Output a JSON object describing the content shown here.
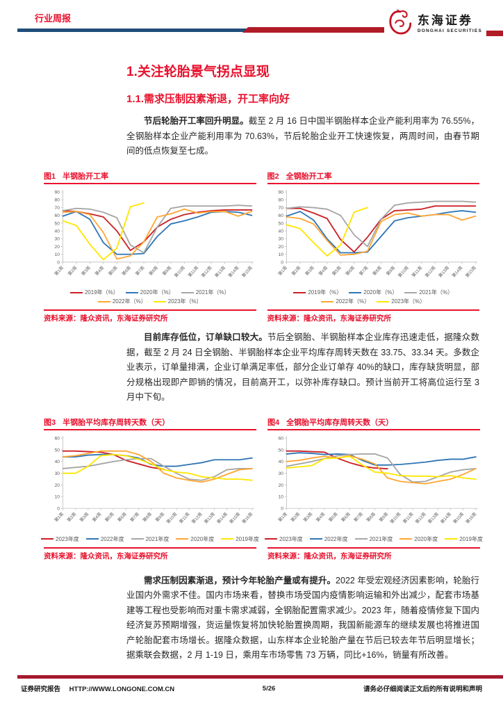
{
  "header": {
    "doc_type": "行业周报",
    "brand_cn": "东海证券",
    "brand_en": "DONGHAI SECURITIES"
  },
  "section": {
    "h1": "1.关注轮胎景气拐点显现",
    "h2": "1.1.需求压制因素渐退，开工率向好"
  },
  "paragraphs": {
    "p1_bold": "节后轮胎开工率回升明显。",
    "p1_rest": "截至 2 月 16 日中国半钢胎样本企业产能利用率为 76.55%，全钢胎样本企业产能利用率为 70.63%，节后轮胎企业开工快速恢复，两周时间，由春节期间的低点恢复至七成。",
    "p2_bold": "目前库存低位，订单缺口较大。",
    "p2_rest": "节后全钢胎、半钢胎样本企业库存迅速走低，据隆众数据，截至 2 月 24 日全钢胎、半钢胎样本企业平均库存周转天数在 33.75、33.34 天。多数企业表示，订单量排满，企业订单满足率低，部分企业订单存 40%的缺口，库存缺货明显，部分规格出现即产即销的情况，目前高开工，以弥补库存缺口。预计当前开工将高位运行至 3 月中下旬。",
    "p3_bold": "需求压制因素渐退，预计今年轮胎产量或有提升。",
    "p3_rest": "2022 年受宏观经济因素影响，轮胎行业国内外需求不佳。国内市场来看，替换市场受国内疫情影响运输和外出减少，配套市场基建等工程也受影响而对重卡需求减弱，全钢胎配置需求减少。2023 年，随着疫情修复下国内经济复苏预期增强，货运量恢复将加快轮胎置换周期，我国新能源车的继续发展也将推进国产轮胎配套市场增长。据隆众数据，山东样本企业轮胎产量在节后已较去年节后明显增长；据乘联会数据，2 月 1-19 日，乘用车市场零售 73 万辆，同比+16%，销量有所改善。"
  },
  "footer": {
    "left1": "证券研究报告",
    "left2": "HTTP://WWW.LONGONE.COM.CN",
    "page": "5/26",
    "right": "请务必仔细阅读正文后的所有说明和声明"
  },
  "colors": {
    "accent_red": "#E8112D",
    "header_blue": "#1F4E79",
    "header_red": "#B01B27",
    "footer_red": "#A6192E"
  },
  "chart_data": [
    {
      "type": "line",
      "fig_label": "图1",
      "title": "半钢胎开工率",
      "source": "资料来源：隆众资讯，东海证券研究所",
      "categories": [
        "第1周",
        "第2周",
        "第3周",
        "第4周",
        "第5周",
        "第6周",
        "第7周",
        "第8周",
        "第9周",
        "第10周",
        "第11周",
        "第12周",
        "第13周",
        "第14周",
        "第15周"
      ],
      "ylim": [
        0,
        90
      ],
      "ytick_step": 10,
      "grid": false,
      "legend_position": "bottom",
      "legend_wrap": 3,
      "series": [
        {
          "name": "2019年（%）",
          "color": "#CB2026",
          "values": [
            66,
            65,
            62,
            58,
            40,
            15,
            26,
            45,
            55,
            61,
            64,
            66,
            67,
            67,
            67
          ]
        },
        {
          "name": "2020年（%）",
          "color": "#2E75B6",
          "values": [
            59,
            65,
            55,
            25,
            10,
            10,
            11,
            33,
            49,
            53,
            58,
            64,
            65,
            64,
            60
          ]
        },
        {
          "name": "2021年（%）",
          "color": "#A6A6A6",
          "values": [
            66,
            69,
            68,
            64,
            57,
            22,
            12,
            45,
            69,
            72,
            72,
            72,
            72,
            73,
            72
          ]
        },
        {
          "name": "2022年（%）",
          "color": "#FFA632",
          "values": [
            64,
            65,
            61,
            38,
            4,
            8,
            26,
            58,
            62,
            68,
            63,
            65,
            65,
            59,
            65
          ]
        },
        {
          "name": "2023年（%）",
          "color": "#FFE600",
          "values": [
            53,
            47,
            23,
            3,
            18,
            71,
            76
          ]
        }
      ]
    },
    {
      "type": "line",
      "fig_label": "图2",
      "title": "全钢胎开工率",
      "source": "资料来源：隆众资讯，东海证券研究所",
      "categories": [
        "第1周",
        "第2周",
        "第3周",
        "第4周",
        "第5周",
        "第6周",
        "第7周",
        "第8周",
        "第9周",
        "第10周",
        "第11周",
        "第12周",
        "第13周",
        "第14周",
        "第15周"
      ],
      "ylim": [
        0,
        90
      ],
      "ytick_step": 10,
      "grid": false,
      "legend_position": "bottom",
      "legend_wrap": 3,
      "series": [
        {
          "name": "2019年（%）",
          "color": "#CB2026",
          "values": [
            69,
            69,
            63,
            56,
            29,
            13,
            32,
            55,
            66,
            67,
            68,
            72,
            72,
            72,
            72
          ]
        },
        {
          "name": "2020年（%）",
          "color": "#2E75B6",
          "values": [
            59,
            65,
            54,
            30,
            12,
            12,
            13,
            33,
            53,
            57,
            59,
            61,
            64,
            66,
            64
          ]
        },
        {
          "name": "2021年（%）",
          "color": "#A6A6A6",
          "values": [
            69,
            71,
            70,
            68,
            60,
            35,
            20,
            55,
            73,
            76,
            77,
            78,
            78,
            78,
            77
          ]
        },
        {
          "name": "2022年（%）",
          "color": "#FFA632",
          "values": [
            58,
            56,
            49,
            28,
            9,
            10,
            14,
            52,
            61,
            63,
            59,
            61,
            61,
            54,
            59
          ]
        },
        {
          "name": "2023年（%）",
          "color": "#FFE600",
          "values": [
            48,
            43,
            25,
            8,
            22,
            64,
            70
          ]
        }
      ]
    },
    {
      "type": "line",
      "fig_label": "图3",
      "title": "半钢胎平均库存周转天数（天）",
      "source": "资料来源：隆众资讯，东海证券研究所",
      "categories": [
        "第1周",
        "第2周",
        "第3周",
        "第4周",
        "第5周",
        "第6周",
        "第7周",
        "第8周",
        "第9周",
        "第10周",
        "第11周",
        "第12周",
        "第13周",
        "第14周",
        "第15周",
        "第16周"
      ],
      "ylim": [
        0,
        60
      ],
      "ytick_step": 10,
      "grid": false,
      "legend_position": "bottom",
      "legend_wrap": 5,
      "series": [
        {
          "name": "2023年度",
          "color": "#CB2026",
          "values": [
            49,
            49,
            48.5,
            48,
            46,
            41,
            38,
            35,
            33.4
          ]
        },
        {
          "name": "2022年度",
          "color": "#2E75B6",
          "values": [
            44,
            44,
            45.5,
            46,
            46,
            45,
            43,
            37.5,
            36,
            36,
            37.5,
            39,
            41.5,
            41.5,
            41.5,
            43
          ]
        },
        {
          "name": "2021年度",
          "color": "#A6A6A6",
          "values": [
            34,
            35,
            36,
            38,
            40,
            41.5,
            42.5,
            42.5,
            36,
            30,
            25,
            24,
            27,
            33,
            34,
            34
          ]
        },
        {
          "name": "2020年度",
          "color": "#FFA632",
          "values": [
            44,
            45,
            47,
            49,
            49,
            49,
            46,
            40,
            30,
            26,
            24,
            22.5,
            25,
            29,
            33,
            34
          ]
        },
        {
          "name": "2019年度",
          "color": "#FFE600",
          "values": [
            30,
            30,
            36,
            45,
            46,
            45,
            42,
            38,
            33,
            31,
            30,
            27,
            26,
            25,
            25,
            24
          ]
        }
      ]
    },
    {
      "type": "line",
      "fig_label": "图4",
      "title": "全钢胎平均库存周转天数（天）",
      "source": "资料来源：隆众资讯，东海证券研究所",
      "categories": [
        "第1周",
        "第2周",
        "第3周",
        "第4周",
        "第5周",
        "第6周",
        "第7周",
        "第8周",
        "第9周",
        "第10周",
        "第11周",
        "第12周",
        "第13周",
        "第14周",
        "第15周",
        "第16周"
      ],
      "ylim": [
        0,
        60
      ],
      "ytick_step": 10,
      "grid": false,
      "legend_position": "bottom",
      "legend_wrap": 5,
      "series": [
        {
          "name": "2023年度",
          "color": "#CB2026",
          "values": [
            49,
            49,
            48.5,
            48,
            43,
            39,
            36,
            34.5,
            33.8
          ]
        },
        {
          "name": "2022年度",
          "color": "#2E75B6",
          "values": [
            46.5,
            47.5,
            47,
            46,
            46.5,
            46,
            41,
            37,
            37,
            37.5,
            38.5,
            39.5,
            41,
            42,
            42,
            44
          ]
        },
        {
          "name": "2021年度",
          "color": "#A6A6A6",
          "values": [
            36,
            38,
            40,
            42.5,
            45,
            46,
            46.5,
            46.5,
            43,
            29,
            22.5,
            23,
            27,
            31,
            33,
            34
          ]
        },
        {
          "name": "2020年度",
          "color": "#FFA632",
          "values": [
            40,
            41,
            43,
            44.5,
            43,
            45,
            42,
            38,
            26,
            23,
            22,
            21,
            23,
            25,
            29,
            34
          ]
        },
        {
          "name": "2019年度",
          "color": "#FFE600",
          "values": [
            34.5,
            35.5,
            36.5,
            42.5,
            43,
            44.5,
            37,
            31,
            30,
            28,
            27.5,
            27.5,
            27,
            28,
            26,
            25
          ]
        }
      ]
    }
  ]
}
